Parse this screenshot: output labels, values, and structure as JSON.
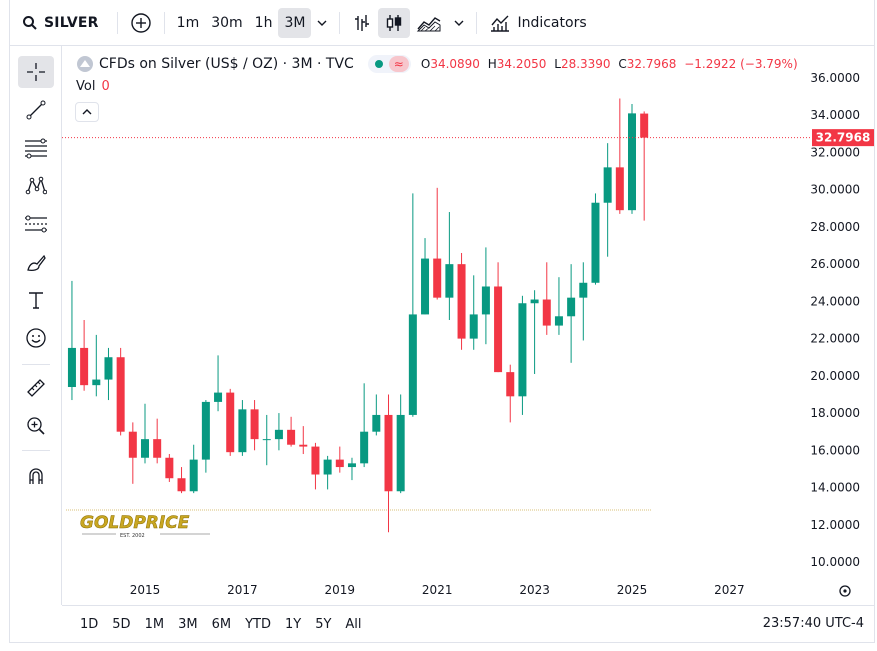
{
  "toolbar": {
    "symbol": "SILVER",
    "intervals": [
      "1m",
      "30m",
      "1h",
      "3M"
    ],
    "active_interval": "3M",
    "indicators_label": "Indicators"
  },
  "legend": {
    "title": "CFDs on Silver (US$ / OZ) · 3M · TVC",
    "open_label": "O",
    "open": "34.0890",
    "high_label": "H",
    "high": "34.2050",
    "low_label": "L",
    "low": "28.3390",
    "close_label": "C",
    "close": "32.7968",
    "change": "−1.2922 (−3.79%)",
    "status_icon": "wave-icon"
  },
  "volume": {
    "label": "Vol",
    "value": "0"
  },
  "price_tag": "32.7968",
  "watermark": {
    "brand": "GOLDPRICE",
    "sub": "EST. 2002"
  },
  "bottom": {
    "ranges": [
      "1D",
      "5D",
      "1M",
      "3M",
      "6M",
      "YTD",
      "1Y",
      "5Y",
      "All"
    ],
    "clock": "23:57:40 UTC-4"
  },
  "colors": {
    "up": "#089981",
    "down": "#f23645",
    "accent": "#2962ff"
  },
  "chart_data": {
    "type": "candlestick",
    "title": "CFDs on Silver (US$ / OZ) · 3M · TVC",
    "ylim": [
      10,
      36
    ],
    "y_ticks": [
      "36.0000",
      "34.0000",
      "32.0000",
      "30.0000",
      "28.0000",
      "26.0000",
      "24.0000",
      "22.0000",
      "20.0000",
      "18.0000",
      "16.0000",
      "14.0000",
      "12.0000",
      "10.0000"
    ],
    "x_ticks": [
      {
        "label": "2015",
        "t": 2015.0
      },
      {
        "label": "2017",
        "t": 2017.0
      },
      {
        "label": "2019",
        "t": 2019.0
      },
      {
        "label": "2021",
        "t": 2021.0
      },
      {
        "label": "2023",
        "t": 2023.0
      },
      {
        "label": "2025",
        "t": 2025.0
      },
      {
        "label": "2027",
        "t": 2027.0
      }
    ],
    "last_price": 32.7968,
    "candles": [
      {
        "t": 2013.5,
        "o": 19.4,
        "h": 25.1,
        "l": 18.7,
        "c": 21.5
      },
      {
        "t": 2013.75,
        "o": 21.5,
        "h": 23.0,
        "l": 19.2,
        "c": 19.5
      },
      {
        "t": 2014.0,
        "o": 19.5,
        "h": 22.2,
        "l": 18.9,
        "c": 19.8
      },
      {
        "t": 2014.25,
        "o": 19.8,
        "h": 21.5,
        "l": 18.7,
        "c": 21.0
      },
      {
        "t": 2014.5,
        "o": 21.0,
        "h": 21.5,
        "l": 16.8,
        "c": 17.0
      },
      {
        "t": 2014.75,
        "o": 17.0,
        "h": 17.5,
        "l": 14.2,
        "c": 15.6
      },
      {
        "t": 2015.0,
        "o": 15.6,
        "h": 18.5,
        "l": 15.3,
        "c": 16.6
      },
      {
        "t": 2015.25,
        "o": 16.6,
        "h": 17.7,
        "l": 15.3,
        "c": 15.6
      },
      {
        "t": 2015.5,
        "o": 15.6,
        "h": 15.8,
        "l": 14.3,
        "c": 14.5
      },
      {
        "t": 2015.75,
        "o": 14.5,
        "h": 15.1,
        "l": 13.7,
        "c": 13.8
      },
      {
        "t": 2016.0,
        "o": 13.8,
        "h": 16.3,
        "l": 13.7,
        "c": 15.5
      },
      {
        "t": 2016.25,
        "o": 15.5,
        "h": 18.7,
        "l": 14.8,
        "c": 18.6
      },
      {
        "t": 2016.5,
        "o": 18.6,
        "h": 21.1,
        "l": 18.1,
        "c": 19.1
      },
      {
        "t": 2016.75,
        "o": 19.1,
        "h": 19.3,
        "l": 15.7,
        "c": 15.9
      },
      {
        "t": 2017.0,
        "o": 15.9,
        "h": 18.7,
        "l": 15.7,
        "c": 18.2
      },
      {
        "t": 2017.25,
        "o": 18.2,
        "h": 18.7,
        "l": 16.0,
        "c": 16.6
      },
      {
        "t": 2017.5,
        "o": 16.6,
        "h": 17.9,
        "l": 15.2,
        "c": 16.6
      },
      {
        "t": 2017.75,
        "o": 16.6,
        "h": 18.0,
        "l": 16.0,
        "c": 17.1
      },
      {
        "t": 2018.0,
        "o": 17.1,
        "h": 17.8,
        "l": 16.2,
        "c": 16.3
      },
      {
        "t": 2018.25,
        "o": 16.3,
        "h": 17.3,
        "l": 15.8,
        "c": 16.2
      },
      {
        "t": 2018.5,
        "o": 16.2,
        "h": 16.4,
        "l": 13.9,
        "c": 14.7
      },
      {
        "t": 2018.75,
        "o": 14.7,
        "h": 15.7,
        "l": 13.9,
        "c": 15.5
      },
      {
        "t": 2019.0,
        "o": 15.5,
        "h": 16.2,
        "l": 14.8,
        "c": 15.1
      },
      {
        "t": 2019.25,
        "o": 15.1,
        "h": 15.6,
        "l": 14.4,
        "c": 15.3
      },
      {
        "t": 2019.5,
        "o": 15.3,
        "h": 19.6,
        "l": 15.1,
        "c": 17.0
      },
      {
        "t": 2019.75,
        "o": 17.0,
        "h": 19.0,
        "l": 16.8,
        "c": 17.9
      },
      {
        "t": 2020.0,
        "o": 17.9,
        "h": 19.0,
        "l": 11.6,
        "c": 13.8
      },
      {
        "t": 2020.25,
        "o": 13.8,
        "h": 19.0,
        "l": 13.7,
        "c": 17.9
      },
      {
        "t": 2020.5,
        "o": 17.9,
        "h": 29.8,
        "l": 17.8,
        "c": 23.3
      },
      {
        "t": 2020.75,
        "o": 23.3,
        "h": 27.4,
        "l": 23.3,
        "c": 26.3
      },
      {
        "t": 2021.0,
        "o": 26.3,
        "h": 30.1,
        "l": 24.1,
        "c": 24.2
      },
      {
        "t": 2021.25,
        "o": 24.2,
        "h": 28.8,
        "l": 23.0,
        "c": 26.0
      },
      {
        "t": 2021.5,
        "o": 26.0,
        "h": 26.6,
        "l": 21.4,
        "c": 22.0
      },
      {
        "t": 2021.75,
        "o": 22.0,
        "h": 25.4,
        "l": 21.4,
        "c": 23.3
      },
      {
        "t": 2022.0,
        "o": 23.3,
        "h": 26.9,
        "l": 21.7,
        "c": 24.8
      },
      {
        "t": 2022.25,
        "o": 24.8,
        "h": 26.1,
        "l": 20.2,
        "c": 20.2
      },
      {
        "t": 2022.5,
        "o": 20.2,
        "h": 20.6,
        "l": 17.5,
        "c": 18.9
      },
      {
        "t": 2022.75,
        "o": 18.9,
        "h": 24.3,
        "l": 17.9,
        "c": 23.9
      },
      {
        "t": 2023.0,
        "o": 23.9,
        "h": 24.6,
        "l": 20.1,
        "c": 24.1
      },
      {
        "t": 2023.25,
        "o": 24.1,
        "h": 26.1,
        "l": 22.2,
        "c": 22.7
      },
      {
        "t": 2023.5,
        "o": 22.7,
        "h": 25.3,
        "l": 22.2,
        "c": 23.2
      },
      {
        "t": 2023.75,
        "o": 23.2,
        "h": 26.0,
        "l": 20.7,
        "c": 24.2
      },
      {
        "t": 2024.0,
        "o": 24.2,
        "h": 26.1,
        "l": 21.9,
        "c": 25.0
      },
      {
        "t": 2024.25,
        "o": 25.0,
        "h": 29.8,
        "l": 24.9,
        "c": 29.3
      },
      {
        "t": 2024.5,
        "o": 29.3,
        "h": 32.5,
        "l": 26.4,
        "c": 31.2
      },
      {
        "t": 2024.75,
        "o": 31.2,
        "h": 34.9,
        "l": 28.7,
        "c": 28.9
      },
      {
        "t": 2025.0,
        "o": 28.9,
        "h": 34.6,
        "l": 28.7,
        "c": 34.1
      },
      {
        "t": 2025.25,
        "o": 34.089,
        "h": 34.205,
        "l": 28.339,
        "c": 32.7968
      }
    ]
  }
}
